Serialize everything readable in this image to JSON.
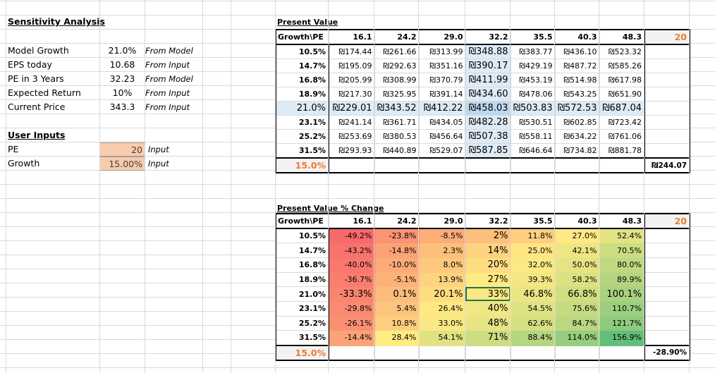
{
  "left": {
    "title": "Sensitivity  Analysis",
    "rows": [
      {
        "label": "Model Growth",
        "value": "21.0%",
        "source": "From Model"
      },
      {
        "label": "EPS today",
        "value": "10.68",
        "source": "From Input"
      },
      {
        "label": "PE in 3 Years",
        "value": "32.23",
        "source": "From Model"
      },
      {
        "label": "Expected Return",
        "value": "10%",
        "source": "From Input"
      },
      {
        "label": "Current Price",
        "value": "343.3",
        "source": "From Input"
      }
    ],
    "user_inputs_title": "User Inputs",
    "inputs": [
      {
        "label": "PE",
        "value": "20",
        "note": "Input"
      },
      {
        "label": "Growth",
        "value": "15.00%",
        "note": "Input"
      }
    ]
  },
  "pv": {
    "title": "Present Value",
    "corner": "Growth\\PE",
    "pe": [
      "16.1",
      "24.2",
      "29.0",
      "32.2",
      "35.5",
      "40.3",
      "48.3"
    ],
    "extra_header": "20",
    "growth": [
      "10.5%",
      "14.7%",
      "16.8%",
      "18.9%",
      "21.0%",
      "23.1%",
      "25.2%",
      "31.5%"
    ],
    "values": [
      [
        "₪174.44",
        "₪261.66",
        "₪313.99",
        "₪348.88",
        "₪383.77",
        "₪436.10",
        "₪523.32"
      ],
      [
        "₪195.09",
        "₪292.63",
        "₪351.16",
        "₪390.17",
        "₪429.19",
        "₪487.72",
        "₪585.26"
      ],
      [
        "₪205.99",
        "₪308.99",
        "₪370.79",
        "₪411.99",
        "₪453.19",
        "₪514.98",
        "₪617.98"
      ],
      [
        "₪217.30",
        "₪325.95",
        "₪391.14",
        "₪434.60",
        "₪478.06",
        "₪543.25",
        "₪651.90"
      ],
      [
        "₪229.01",
        "₪343.52",
        "₪412.22",
        "₪458.03",
        "₪503.83",
        "₪572.53",
        "₪687.04"
      ],
      [
        "₪241.14",
        "₪361.71",
        "₪434.05",
        "₪482.28",
        "₪530.51",
        "₪602.85",
        "₪723.42"
      ],
      [
        "₪253.69",
        "₪380.53",
        "₪456.64",
        "₪507.38",
        "₪558.11",
        "₪634.22",
        "₪761.06"
      ],
      [
        "₪293.93",
        "₪440.89",
        "₪529.07",
        "₪587.85",
        "₪646.64",
        "₪734.82",
        "₪881.78"
      ]
    ],
    "bottom_growth": "15.0%",
    "bottom_result": "₪244.07"
  },
  "pct": {
    "title": "Present Value % Change",
    "corner": "Growth\\PE",
    "pe": [
      "16.1",
      "24.2",
      "29.0",
      "32.2",
      "35.5",
      "40.3",
      "48.3"
    ],
    "extra_header": "20",
    "growth": [
      "10.5%",
      "14.7%",
      "16.8%",
      "18.9%",
      "21.0%",
      "23.1%",
      "25.2%",
      "31.5%"
    ],
    "values": [
      [
        "-49.2%",
        "-23.8%",
        "-8.5%",
        "2%",
        "11.8%",
        "27.0%",
        "52.4%"
      ],
      [
        "-43.2%",
        "-14.8%",
        "2.3%",
        "14%",
        "25.0%",
        "42.1%",
        "70.5%"
      ],
      [
        "-40.0%",
        "-10.0%",
        "8.0%",
        "20%",
        "32.0%",
        "50.0%",
        "80.0%"
      ],
      [
        "-36.7%",
        "-5.1%",
        "13.9%",
        "27%",
        "39.3%",
        "58.2%",
        "89.9%"
      ],
      [
        "-33.3%",
        "0.1%",
        "20.1%",
        "33%",
        "46.8%",
        "66.8%",
        "100.1%"
      ],
      [
        "-29.8%",
        "5.4%",
        "26.4%",
        "40%",
        "54.5%",
        "75.6%",
        "110.7%"
      ],
      [
        "-26.1%",
        "10.8%",
        "33.0%",
        "48%",
        "62.6%",
        "84.7%",
        "121.7%"
      ],
      [
        "-14.4%",
        "28.4%",
        "54.1%",
        "71%",
        "88.4%",
        "114.0%",
        "156.9%"
      ]
    ],
    "bottom_growth": "15.0%",
    "bottom_result": "-28.90%",
    "selected_cell": "33%"
  },
  "colors": {
    "accent_orange": "#ed7d31",
    "input_fill": "#f8cbad",
    "highlight_blue": "#ddebf7",
    "scale_low": "#f8696b",
    "scale_mid": "#ffeb84",
    "scale_high": "#63be7b"
  }
}
